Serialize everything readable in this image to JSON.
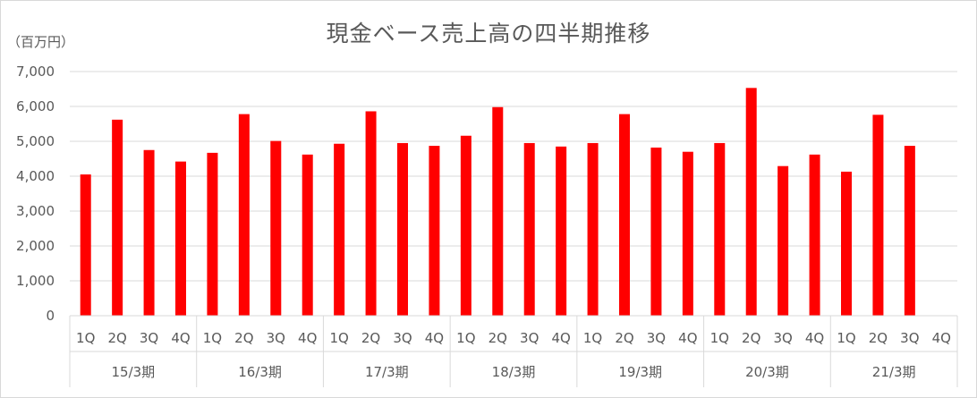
{
  "chart_data": {
    "type": "bar",
    "title": "現金ベース売上高の四半期推移",
    "ylabel": "（百万円）",
    "xlabel": "",
    "ylim": [
      0,
      7000
    ],
    "yticks": [
      "0",
      "1,000",
      "2,000",
      "3,000",
      "4,000",
      "5,000",
      "6,000",
      "7,000"
    ],
    "ytick_values": [
      0,
      1000,
      2000,
      3000,
      4000,
      5000,
      6000,
      7000
    ],
    "grid": true,
    "bar_color": "#ff0000",
    "groups": [
      {
        "label": "15/3期",
        "quarters": [
          "1Q",
          "2Q",
          "3Q",
          "4Q"
        ],
        "values": [
          4050,
          5620,
          4750,
          4420
        ]
      },
      {
        "label": "16/3期",
        "quarters": [
          "1Q",
          "2Q",
          "3Q",
          "4Q"
        ],
        "values": [
          4670,
          5780,
          5010,
          4620
        ]
      },
      {
        "label": "17/3期",
        "quarters": [
          "1Q",
          "2Q",
          "3Q",
          "4Q"
        ],
        "values": [
          4930,
          5860,
          4950,
          4870
        ]
      },
      {
        "label": "18/3期",
        "quarters": [
          "1Q",
          "2Q",
          "3Q",
          "4Q"
        ],
        "values": [
          5160,
          5980,
          4950,
          4850
        ]
      },
      {
        "label": "19/3期",
        "quarters": [
          "1Q",
          "2Q",
          "3Q",
          "4Q"
        ],
        "values": [
          4950,
          5780,
          4820,
          4700
        ]
      },
      {
        "label": "20/3期",
        "quarters": [
          "1Q",
          "2Q",
          "3Q",
          "4Q"
        ],
        "values": [
          4950,
          6530,
          4290,
          4620
        ]
      },
      {
        "label": "21/3期",
        "quarters": [
          "1Q",
          "2Q",
          "3Q",
          "4Q"
        ],
        "values": [
          4130,
          5760,
          4870,
          null
        ]
      }
    ]
  }
}
